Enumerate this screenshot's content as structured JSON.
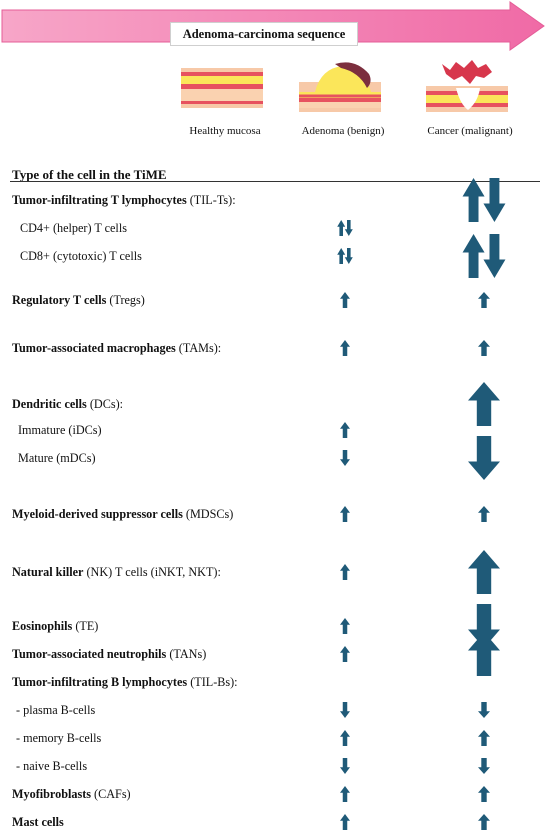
{
  "sequence_title": "Adenoma-carcinoma sequence",
  "stages": [
    {
      "label": "Healthy mucosa"
    },
    {
      "label": "Adenoma (benign)"
    },
    {
      "label": "Cancer (malignant)"
    }
  ],
  "table_header": "Type of the cell in the TiME",
  "rows": [
    {
      "bold": "Tumor-infiltrating T lymphocytes",
      "rest": " (TIL-Ts):",
      "adenoma": null,
      "cancer": "updown"
    },
    {
      "bold": "",
      "rest": "CD4+ (helper) T cells",
      "adenoma": "updown",
      "cancer": null
    },
    {
      "bold": "",
      "rest": "CD8+ (cytotoxic) T cells",
      "adenoma": "updown",
      "cancer": "updown"
    },
    {
      "bold": "Regulatory T cells",
      "rest": " (Tregs)",
      "adenoma": "up",
      "cancer": "up"
    },
    {
      "bold": "Tumor-associated macrophages",
      "rest": " (TAMs):",
      "adenoma": "up",
      "cancer": "up"
    },
    {
      "bold": "Dendritic cells",
      "rest": " (DCs):",
      "adenoma": null,
      "cancer": "up"
    },
    {
      "bold": "",
      "rest": "Immature (iDCs)",
      "adenoma": "up",
      "cancer": null
    },
    {
      "bold": "",
      "rest": "Mature (mDCs)",
      "adenoma": "down",
      "cancer": "down"
    },
    {
      "bold": "Myeloid-derived suppressor cells",
      "rest": " (MDSCs)",
      "adenoma": "up",
      "cancer": "up"
    },
    {
      "bold": "Natural killer",
      "rest": " (NK) T cells (iNKT, NKT):",
      "adenoma": "up",
      "cancer": "up"
    },
    {
      "bold": "Eosinophils",
      "rest": " (TE)",
      "adenoma": "up",
      "cancer": "down"
    },
    {
      "bold": "Tumor-associated neutrophils",
      "rest": " (TANs)",
      "adenoma": "up",
      "cancer": "up"
    },
    {
      "bold": "Tumor-infiltrating B lymphocytes",
      "rest": " (TIL-Bs):",
      "adenoma": null,
      "cancer": null
    },
    {
      "bold": "",
      "rest": "- plasma B-cells",
      "adenoma": "down",
      "cancer": "down"
    },
    {
      "bold": "",
      "rest": "- memory B-cells",
      "adenoma": "up",
      "cancer": "up"
    },
    {
      "bold": "",
      "rest": "- naive B-cells",
      "adenoma": "down",
      "cancer": "down"
    },
    {
      "bold": "Myofibroblasts",
      "rest": " (CAFs)",
      "adenoma": "up",
      "cancer": "up"
    },
    {
      "bold": "Mast cells",
      "rest": "",
      "adenoma": "up",
      "cancer": "up"
    }
  ],
  "colors": {
    "banner": "#f58fba",
    "arrow": "#1f5a78"
  }
}
